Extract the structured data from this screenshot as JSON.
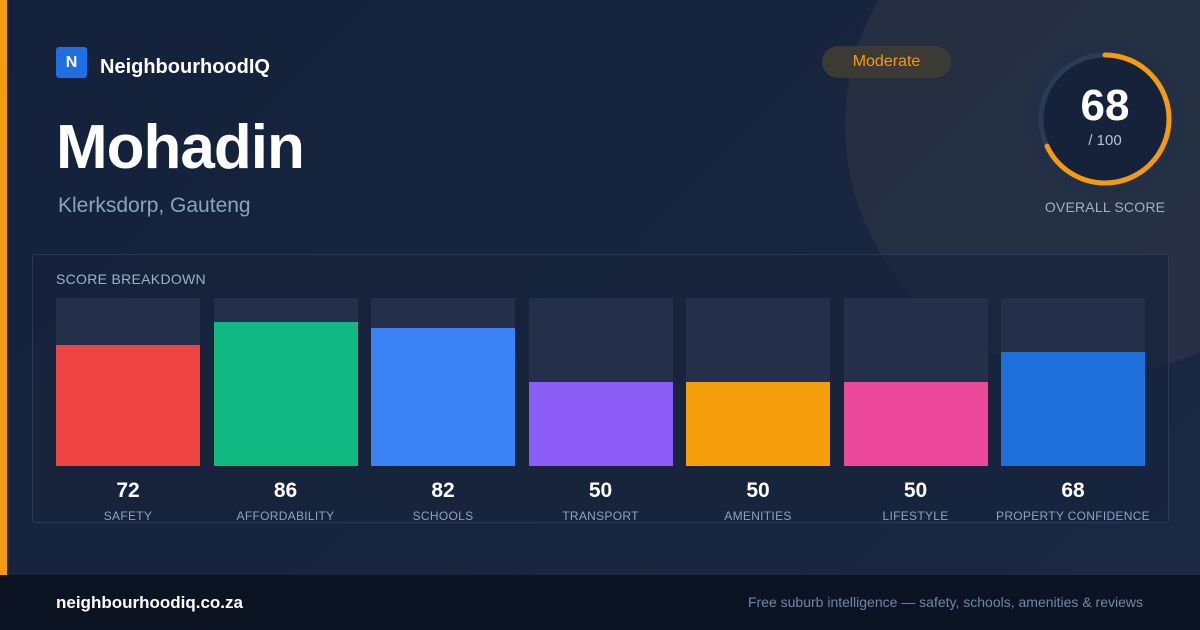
{
  "brand": {
    "logo_letter": "N",
    "name": "NeighbourhoodIQ",
    "accent_color": "#f39c12",
    "logo_color": "#1f6fe0"
  },
  "suburb": {
    "name": "Mohadin",
    "location": "Klerksdorp, Gauteng"
  },
  "rating": {
    "label": "Moderate",
    "color": "#f39c12"
  },
  "overall": {
    "score": "68",
    "max": "/ 100",
    "label": "OVERALL SCORE",
    "fraction": 0.68,
    "color": "#f39c12"
  },
  "breakdown": {
    "title": "SCORE BREAKDOWN",
    "items": [
      {
        "label": "SAFETY",
        "value": "72",
        "score": 72,
        "color": "#ef4444"
      },
      {
        "label": "AFFORDABILITY",
        "value": "86",
        "score": 86,
        "color": "#10b981"
      },
      {
        "label": "SCHOOLS",
        "value": "82",
        "score": 82,
        "color": "#3b82f6"
      },
      {
        "label": "TRANSPORT",
        "value": "50",
        "score": 50,
        "color": "#8b5cf6"
      },
      {
        "label": "AMENITIES",
        "value": "50",
        "score": 50,
        "color": "#f59e0b"
      },
      {
        "label": "LIFESTYLE",
        "value": "50",
        "score": 50,
        "color": "#ec4899"
      },
      {
        "label": "PROPERTY CONFIDENCE",
        "value": "68",
        "score": 68,
        "color": "#1e6fd9"
      }
    ]
  },
  "footer": {
    "site": "neighbourhoodiq.co.za",
    "tagline": "Free suburb intelligence — safety, schools, amenities & reviews"
  }
}
